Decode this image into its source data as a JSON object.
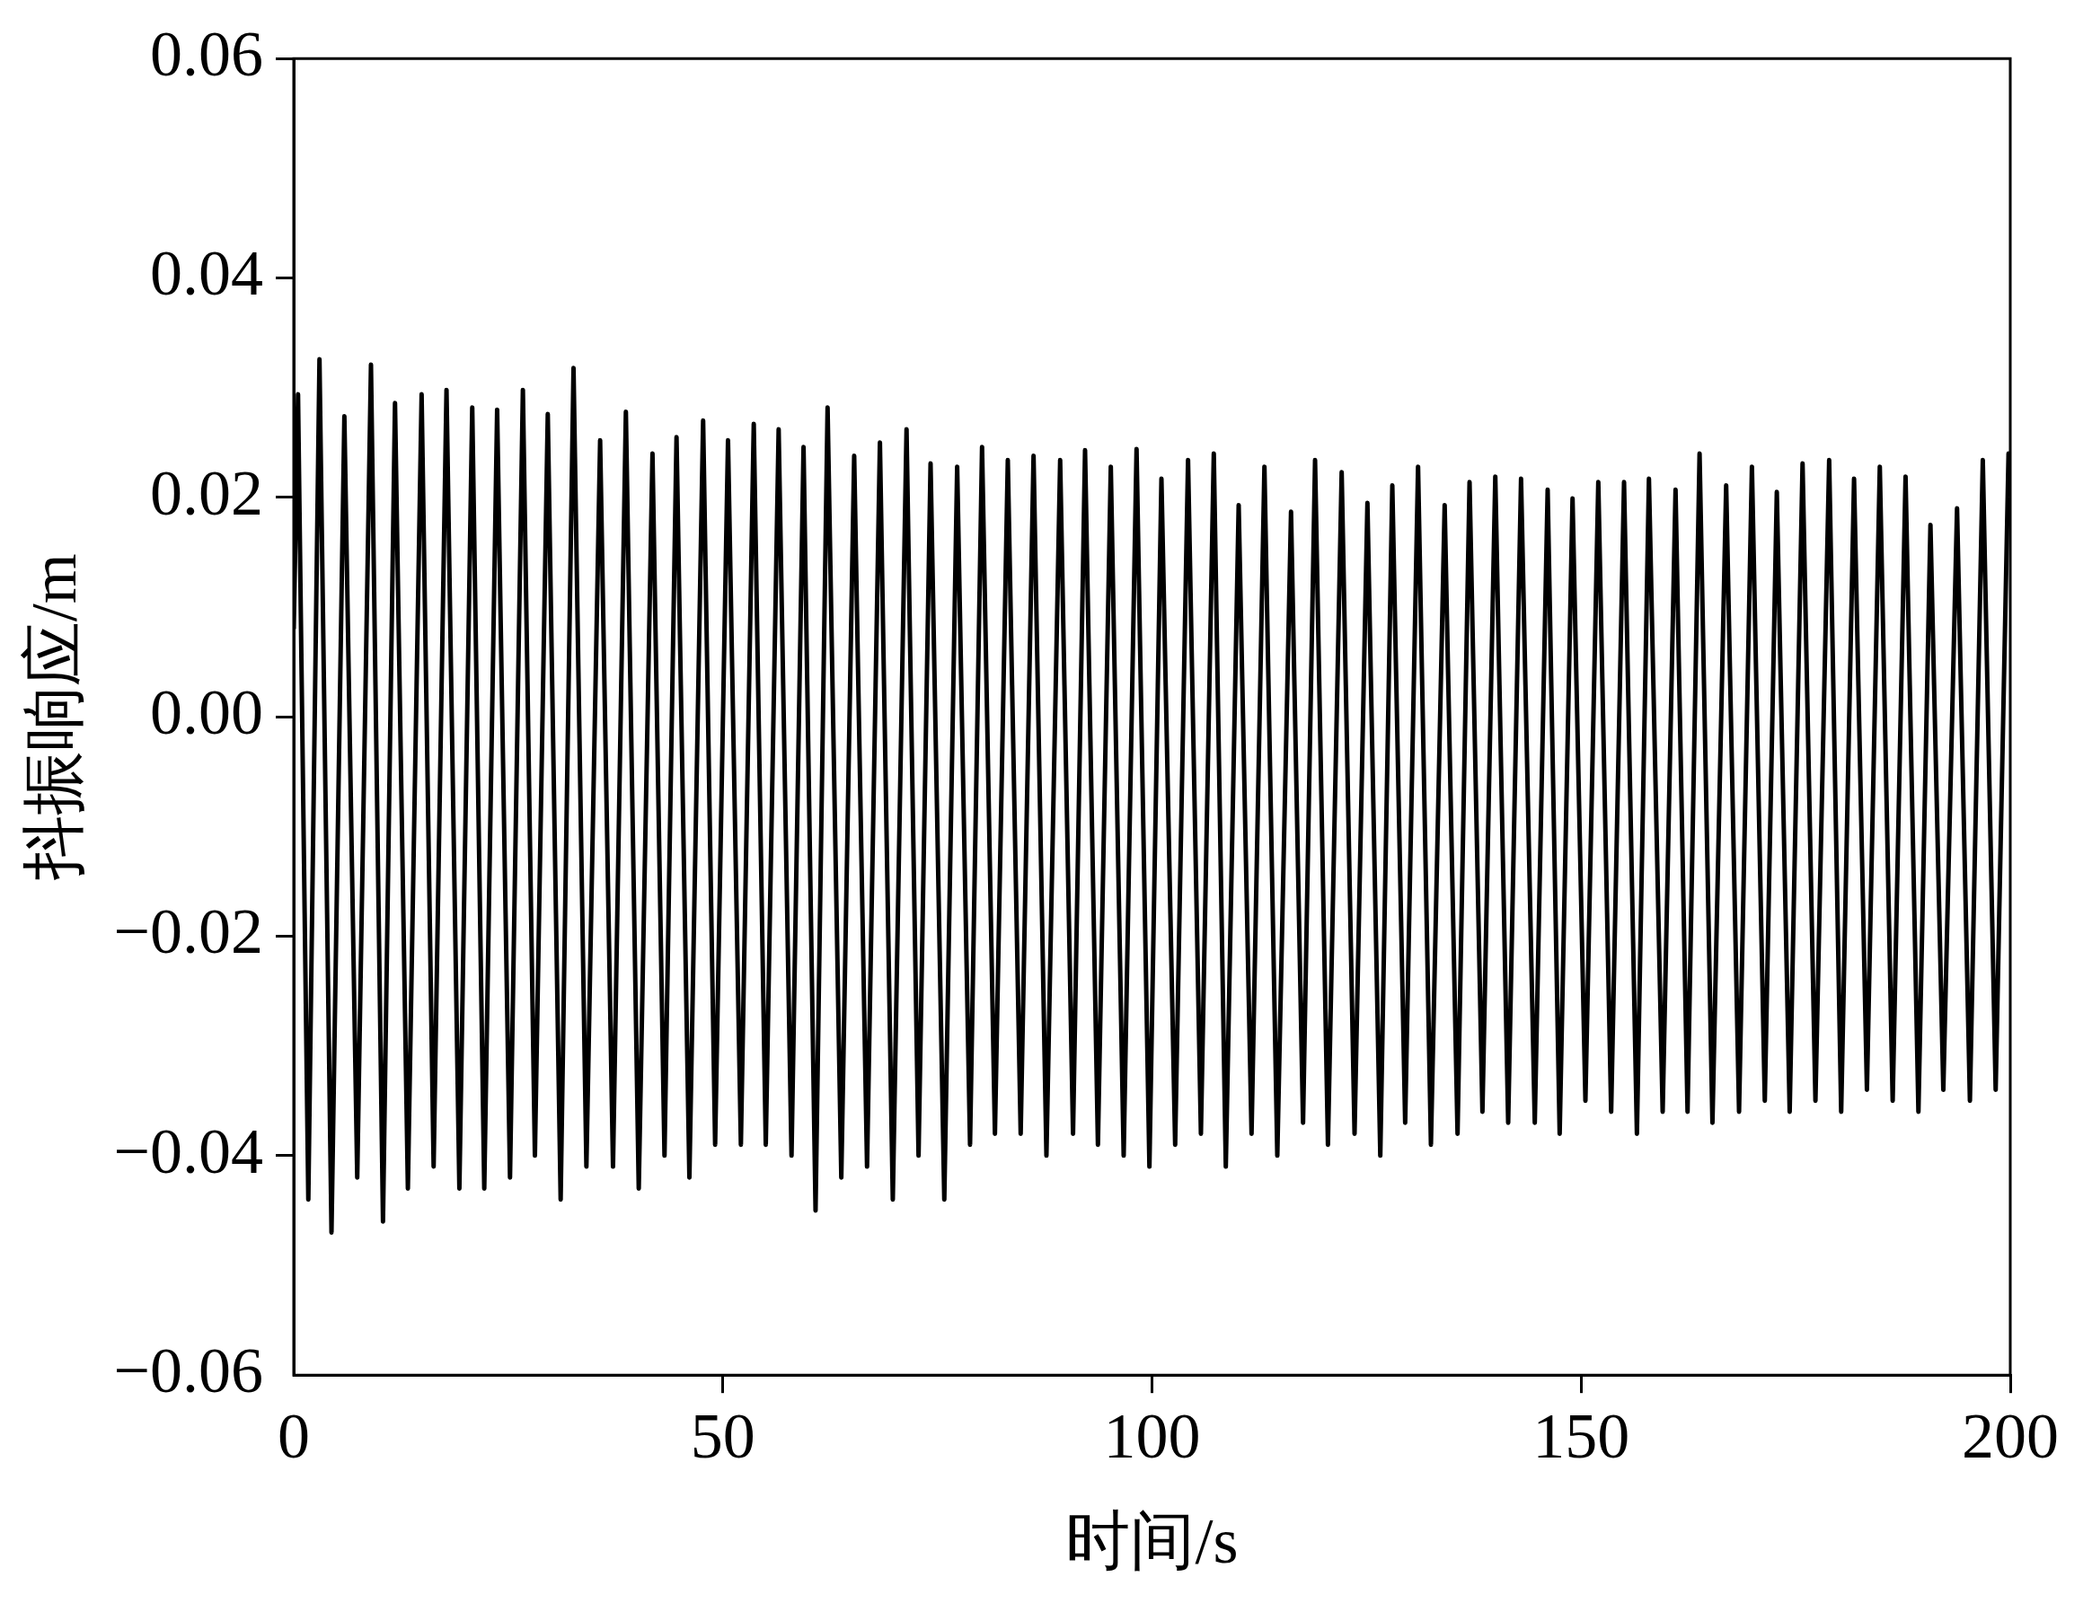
{
  "chart_data": {
    "type": "line",
    "xlabel": "时间/s",
    "ylabel": "抖振响应/m",
    "xlim": [
      0,
      200
    ],
    "xticks": [
      0,
      50,
      100,
      150,
      200
    ],
    "ylim": [
      -0.06,
      0.06
    ],
    "yticks": [
      {
        "value": -0.06,
        "label": "−0.06"
      },
      {
        "value": -0.04,
        "label": "−0.04"
      },
      {
        "value": -0.02,
        "label": "−0.02"
      },
      {
        "value": 0,
        "label": "0.00"
      },
      0.02,
      0.04,
      0.06
    ],
    "grid": false,
    "legend": false,
    "marker": "none",
    "line_style": "solid",
    "series": [
      {
        "color": "#000000",
        "x": [
          0,
          0.5,
          1.7,
          3.0,
          4.4,
          5.9,
          7.4,
          9.0,
          10.4,
          11.8,
          13.3,
          14.9,
          16.3,
          17.8,
          19.3,
          20.8,
          22.2,
          23.7,
          25.2,
          26.7,
          28.1,
          29.6,
          31.1,
          32.6,
          34.1,
          35.7,
          37.2,
          38.7,
          40.2,
          41.8,
          43.2,
          44.6,
          46.1,
          47.7,
          49.1,
          50.6,
          52.1,
          53.6,
          55.0,
          56.5,
          58.0,
          59.4,
          60.8,
          62.2,
          63.8,
          65.3,
          66.8,
          68.3,
          69.8,
          71.4,
          72.8,
          74.2,
          75.8,
          77.3,
          78.8,
          80.2,
          81.7,
          83.2,
          84.7,
          86.2,
          87.7,
          89.3,
          90.8,
          92.2,
          93.7,
          95.2,
          96.7,
          98.2,
          99.7,
          101.1,
          102.7,
          104.2,
          105.7,
          107.2,
          108.6,
          110.1,
          111.6,
          113.1,
          114.6,
          116.2,
          117.6,
          119.0,
          120.5,
          122.1,
          123.6,
          125.1,
          126.6,
          128.0,
          129.5,
          131.0,
          132.5,
          134.1,
          135.6,
          137.0,
          138.5,
          140.0,
          141.5,
          143.0,
          144.6,
          146.1,
          147.5,
          149.0,
          150.5,
          152.0,
          153.5,
          155.0,
          156.5,
          157.9,
          159.5,
          161.0,
          162.4,
          163.8,
          165.3,
          166.9,
          168.4,
          169.9,
          171.4,
          172.8,
          174.3,
          175.8,
          177.3,
          178.9,
          180.3,
          181.8,
          183.3,
          184.8,
          186.3,
          187.8,
          189.3,
          190.7,
          192.2,
          193.8,
          195.3,
          196.8,
          198.3,
          199.8,
          200
        ],
        "values": [
          0.008,
          0.0294,
          -0.044,
          0.0326,
          -0.047,
          0.0274,
          -0.042,
          0.0321,
          -0.046,
          0.0286,
          -0.043,
          0.0294,
          -0.041,
          0.0298,
          -0.043,
          0.0282,
          -0.043,
          0.028,
          -0.042,
          0.0298,
          -0.04,
          0.0276,
          -0.044,
          0.0318,
          -0.041,
          0.0252,
          -0.041,
          0.0278,
          -0.043,
          0.024,
          -0.04,
          0.0255,
          -0.042,
          0.027,
          -0.039,
          0.0252,
          -0.039,
          0.0267,
          -0.039,
          0.0262,
          -0.04,
          0.0246,
          -0.045,
          0.0282,
          -0.042,
          0.0238,
          -0.041,
          0.025,
          -0.044,
          0.0262,
          -0.04,
          0.0231,
          -0.044,
          0.0228,
          -0.039,
          0.0246,
          -0.038,
          0.0234,
          -0.038,
          0.0238,
          -0.04,
          0.0234,
          -0.038,
          0.0243,
          -0.039,
          0.0228,
          -0.04,
          0.0244,
          -0.041,
          0.0217,
          -0.039,
          0.0234,
          -0.038,
          0.024,
          -0.041,
          0.0193,
          -0.038,
          0.0228,
          -0.04,
          0.0187,
          -0.037,
          0.0234,
          -0.039,
          0.0223,
          -0.038,
          0.0195,
          -0.04,
          0.0211,
          -0.037,
          0.0228,
          -0.039,
          0.0193,
          -0.038,
          0.0214,
          -0.036,
          0.0219,
          -0.037,
          0.0217,
          -0.037,
          0.0207,
          -0.038,
          0.0199,
          -0.035,
          0.0214,
          -0.036,
          0.0214,
          -0.038,
          0.0217,
          -0.036,
          0.0207,
          -0.036,
          0.024,
          -0.037,
          0.0211,
          -0.036,
          0.0228,
          -0.035,
          0.0205,
          -0.036,
          0.0231,
          -0.035,
          0.0234,
          -0.036,
          0.0217,
          -0.034,
          0.0228,
          -0.035,
          0.0219,
          -0.036,
          0.0175,
          -0.034,
          0.019,
          -0.035,
          0.0234,
          -0.034,
          0.024,
          0.02
        ]
      }
    ]
  }
}
